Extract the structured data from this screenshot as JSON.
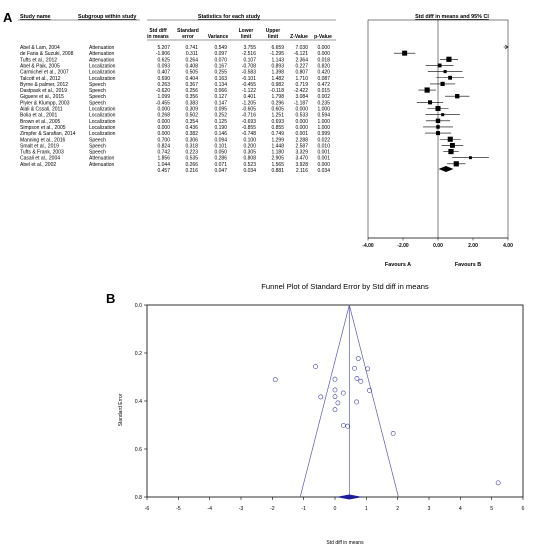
{
  "panel_a": {
    "letter": "A",
    "headers": {
      "study": "Study name",
      "subgroup": "Subgroup within study",
      "stats_group": "Statistics for each study",
      "ci_group": "Std diff in means and 95% CI",
      "col1_l1": "Std diff",
      "col1_l2": "in means",
      "col2_l1": "Standard",
      "col2_l2": "error",
      "col3": "Variance",
      "col4_l1": "Lower",
      "col4_l2": "limit",
      "col5_l1": "Upper",
      "col5_l2": "limit",
      "col6": "Z-Value",
      "col7": "p-Value"
    },
    "rows": [
      {
        "study": "Abel & Lam, 2004",
        "subgroup": "Attenuation",
        "d": "5.207",
        "se": "0.741",
        "var": "0.549",
        "ll": "3.755",
        "ul": "6.659",
        "z": "7.030",
        "p": "0.000"
      },
      {
        "study": "de Faria & Suzuki, 2008",
        "subgroup": "Attenuation",
        "d": "-1.906",
        "se": "0.311",
        "var": "0.097",
        "ll": "-2.516",
        "ul": "-1.295",
        "z": "-6.121",
        "p": "0.000"
      },
      {
        "study": "Tufts et al., 2012",
        "subgroup": "Attenuation",
        "d": "0.625",
        "se": "0.264",
        "var": "0.070",
        "ll": "0.107",
        "ul": "1.143",
        "z": "2.364",
        "p": "0.018"
      },
      {
        "study": "Abel & Paik, 2005",
        "subgroup": "Localization",
        "d": "0.093",
        "se": "0.408",
        "var": "0.167",
        "ll": "-0.708",
        "ul": "0.893",
        "z": "0.227",
        "p": "0.820"
      },
      {
        "study": "Carmichel et al., 2007",
        "subgroup": "Localization",
        "d": "0.407",
        "se": "0.505",
        "var": "0.255",
        "ll": "-0.583",
        "ul": "1.398",
        "z": "0.807",
        "p": "0.420"
      },
      {
        "study": "Talcott et al., 2012",
        "subgroup": "Localization",
        "d": "0.690",
        "se": "0.404",
        "var": "0.163",
        "ll": "-0.101",
        "ul": "1.482",
        "z": "1.710",
        "p": "0.087"
      },
      {
        "study": "Byrne & palmer, 2012",
        "subgroup": "Speech",
        "d": "0.263",
        "se": "0.367",
        "var": "0.134",
        "ll": "-0.455",
        "ul": "0.982",
        "z": "0.719",
        "p": "0.472"
      },
      {
        "study": "Dastpask et al., 2019",
        "subgroup": "Speech",
        "d": "-0.620",
        "se": "0.256",
        "var": "0.066",
        "ll": "-1.122",
        "ul": "-0.118",
        "z": "-2.422",
        "p": "0.015"
      },
      {
        "study": "Giguere et al., 2015",
        "subgroup": "Speech",
        "d": "1.099",
        "se": "0.356",
        "var": "0.127",
        "ll": "0.401",
        "ul": "1.798",
        "z": "3.084",
        "p": "0.002"
      },
      {
        "study": "Plyler & Klumpp, 2003",
        "subgroup": "Speech",
        "d": "-0.455",
        "se": "0.383",
        "var": "0.147",
        "ll": "-1.205",
        "ul": "0.296",
        "z": "-1.187",
        "p": "0.235"
      },
      {
        "study": "Alali & Cssali, 2011",
        "subgroup": "Localization",
        "d": "0.000",
        "se": "0.309",
        "var": "0.095",
        "ll": "-0.605",
        "ul": "0.605",
        "z": "0.000",
        "p": "1.000"
      },
      {
        "study": "Bolia et al., 2001",
        "subgroup": "Localization",
        "d": "0.268",
        "se": "0.502",
        "var": "0.252",
        "ll": "-0.716",
        "ul": "1.251",
        "z": "0.533",
        "p": "0.594"
      },
      {
        "study": "Brown et al., 2005",
        "subgroup": "Localization",
        "d": "0.000",
        "se": "0.354",
        "var": "0.125",
        "ll": "-0.693",
        "ul": "0.693",
        "z": "0.000",
        "p": "1.000"
      },
      {
        "study": "Simpson et al., 2005",
        "subgroup": "Localization",
        "d": "0.000",
        "se": "0.436",
        "var": "0.190",
        "ll": "-0.855",
        "ul": "0.855",
        "z": "0.000",
        "p": "1.000"
      },
      {
        "study": "Zimpfer & Sarafian, 2014",
        "subgroup": "Localization",
        "d": "0.000",
        "se": "0.382",
        "var": "0.146",
        "ll": "-0.748",
        "ul": "0.749",
        "z": "0.001",
        "p": "0.999"
      },
      {
        "study": "Manning et al., 2016",
        "subgroup": "Speech",
        "d": "0.700",
        "se": "0.306",
        "var": "0.094",
        "ll": "0.100",
        "ul": "1.299",
        "z": "2.288",
        "p": "0.022"
      },
      {
        "study": "Smalt et al., 2019",
        "subgroup": "Speech",
        "d": "0.824",
        "se": "0.318",
        "var": "0.101",
        "ll": "0.200",
        "ul": "1.448",
        "z": "2.587",
        "p": "0.010"
      },
      {
        "study": "Tufts & Frank, 2003",
        "subgroup": "Speech",
        "d": "0.742",
        "se": "0.223",
        "var": "0.050",
        "ll": "0.305",
        "ul": "1.180",
        "z": "3.329",
        "p": "0.001"
      },
      {
        "study": "Casali et al., 2004",
        "subgroup": "Attenuation",
        "d": "1.856",
        "se": "0.535",
        "var": "0.286",
        "ll": "0.808",
        "ul": "2.905",
        "z": "3.470",
        "p": "0.001"
      },
      {
        "study": "Abel et al., 2002",
        "subgroup": "Attenuation",
        "d": "1.044",
        "se": "0.266",
        "var": "0.071",
        "ll": "0.523",
        "ul": "1.565",
        "z": "3.928",
        "p": "0.000"
      }
    ],
    "summary": {
      "d": "0.457",
      "se": "0.216",
      "var": "0.047",
      "ll": "0.034",
      "ul": "0.881",
      "z": "2.116",
      "p": "0.034"
    },
    "favours_a": "Favours A",
    "favours_b": "Favours B"
  },
  "panel_b": {
    "letter": "B",
    "title": "Funnel Plot of Standard Error by Std diff in means",
    "xlabel": "Std diff in means",
    "ylabel": "Standard Error"
  },
  "chart_data": [
    {
      "type": "forest",
      "xlim": [
        -4,
        4
      ],
      "xticks": [
        -4,
        -2,
        0,
        2,
        4
      ],
      "xtick_labels": [
        "-4.00",
        "-2.00",
        "0.00",
        "2.00",
        "4.00"
      ],
      "estimates": [
        5.207,
        -1.906,
        0.625,
        0.093,
        0.407,
        0.69,
        0.263,
        -0.62,
        1.099,
        -0.455,
        0.0,
        0.268,
        0.0,
        0.0,
        0.0,
        0.7,
        0.824,
        0.742,
        1.856,
        1.044
      ],
      "lower": [
        3.755,
        -2.516,
        0.107,
        -0.708,
        -0.583,
        -0.101,
        -0.455,
        -1.122,
        0.401,
        -1.205,
        -0.605,
        -0.716,
        -0.693,
        -0.855,
        -0.748,
        0.1,
        0.2,
        0.305,
        0.808,
        0.523
      ],
      "upper": [
        6.659,
        -1.295,
        1.143,
        0.893,
        1.398,
        1.482,
        0.982,
        -0.118,
        1.798,
        0.296,
        0.605,
        1.251,
        0.693,
        0.855,
        0.749,
        1.299,
        1.448,
        1.18,
        2.905,
        1.565
      ],
      "weights_se": [
        0.741,
        0.311,
        0.264,
        0.408,
        0.505,
        0.404,
        0.367,
        0.256,
        0.356,
        0.383,
        0.309,
        0.502,
        0.354,
        0.436,
        0.382,
        0.306,
        0.318,
        0.223,
        0.535,
        0.266
      ],
      "pooled": {
        "estimate": 0.457,
        "lower": 0.034,
        "upper": 0.881
      }
    },
    {
      "type": "scatter",
      "xlim": [
        -6,
        6
      ],
      "ylim": [
        0.8,
        0.0
      ],
      "xticks": [
        -6,
        -5,
        -4,
        -3,
        -2,
        -1,
        0,
        1,
        2,
        3,
        4,
        5,
        6
      ],
      "yticks": [
        0.0,
        0.2,
        0.4,
        0.6,
        0.8
      ],
      "ytick_labels": [
        "0.0",
        "0.2",
        "0.4",
        "0.6",
        "0.8"
      ],
      "points": [
        [
          5.207,
          0.741
        ],
        [
          -1.906,
          0.311
        ],
        [
          0.625,
          0.264
        ],
        [
          0.093,
          0.408
        ],
        [
          0.407,
          0.505
        ],
        [
          0.69,
          0.404
        ],
        [
          0.263,
          0.367
        ],
        [
          -0.62,
          0.256
        ],
        [
          1.099,
          0.356
        ],
        [
          -0.455,
          0.383
        ],
        [
          0.0,
          0.309
        ],
        [
          0.268,
          0.502
        ],
        [
          0.0,
          0.354
        ],
        [
          0.0,
          0.436
        ],
        [
          0.0,
          0.382
        ],
        [
          0.7,
          0.306
        ],
        [
          0.824,
          0.318
        ],
        [
          0.742,
          0.223
        ],
        [
          1.856,
          0.535
        ],
        [
          1.044,
          0.266
        ]
      ],
      "pooled_estimate": 0.457,
      "funnel_z": 1.96,
      "colors": {
        "points": "#3a3aa8",
        "funnel": "#5a5ab8",
        "diamond": "#1c1c9c"
      }
    }
  ]
}
